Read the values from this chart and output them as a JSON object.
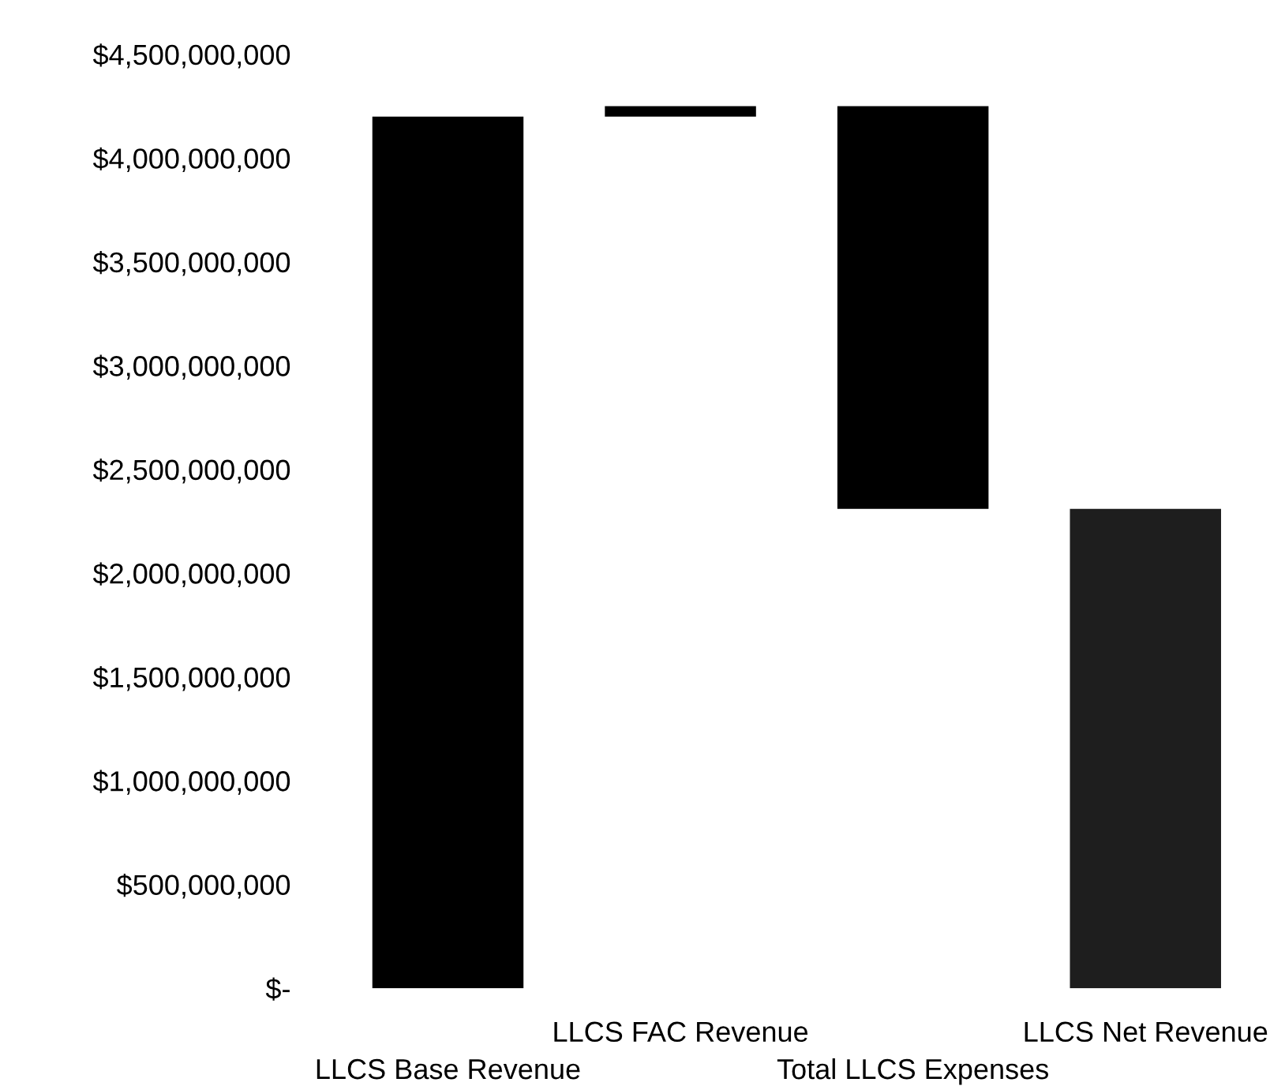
{
  "chart_data": {
    "type": "bar",
    "categories": [
      "LLCS Base Revenue",
      "LLCS FAC Revenue",
      "Total LLCS Expenses",
      "LLCS Net Revenue"
    ],
    "values": [
      4200000000,
      50000000,
      1940000000,
      2310000000
    ],
    "base": [
      0,
      4200000000,
      2310000000,
      0
    ],
    "colors": [
      "#000000",
      "#000000",
      "#000000",
      "#1e1e1e"
    ],
    "ylim": [
      0,
      4500000000
    ],
    "yticks": [
      {
        "value": 0,
        "label": "$-"
      },
      {
        "value": 500000000,
        "label": "$500,000,000"
      },
      {
        "value": 1000000000,
        "label": "$1,000,000,000"
      },
      {
        "value": 1500000000,
        "label": "$1,500,000,000"
      },
      {
        "value": 2000000000,
        "label": "$2,000,000,000"
      },
      {
        "value": 2500000000,
        "label": "$2,500,000,000"
      },
      {
        "value": 3000000000,
        "label": "$3,000,000,000"
      },
      {
        "value": 3500000000,
        "label": "$3,500,000,000"
      },
      {
        "value": 4000000000,
        "label": "$4,000,000,000"
      },
      {
        "value": 4500000000,
        "label": "$4,500,000,000"
      }
    ],
    "grid": false,
    "legend": false
  }
}
